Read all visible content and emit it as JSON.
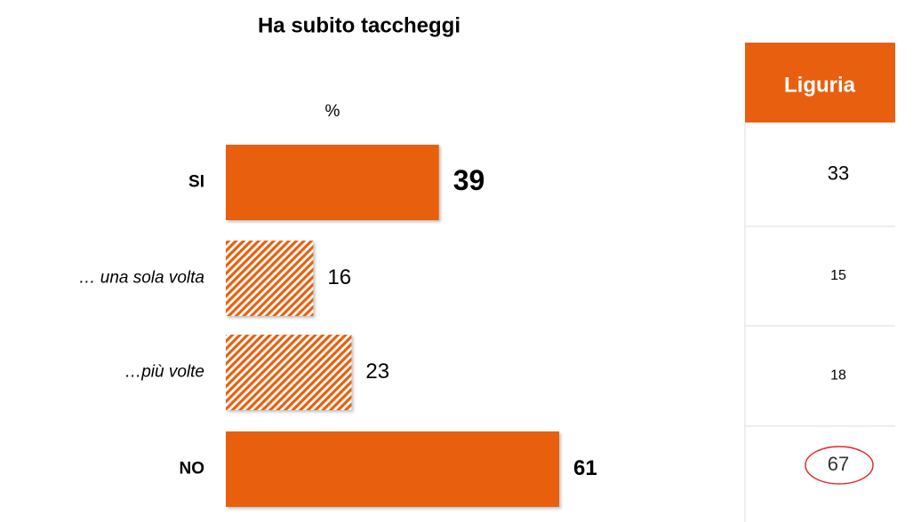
{
  "chart_data": {
    "type": "bar",
    "orientation": "horizontal",
    "title": "Ha subito taccheggi",
    "unit_label": "%",
    "categories": [
      "SI",
      "… una sola volta",
      "…più volte",
      "NO"
    ],
    "values": [
      39,
      16,
      23,
      61
    ],
    "patterns": [
      "solid",
      "hatch",
      "hatch",
      "solid"
    ],
    "color": "#e8600f"
  },
  "table": {
    "header": "Liguria",
    "rows": [
      33,
      15,
      18,
      67
    ],
    "circled_row": 3,
    "header_color": "#e8600f"
  }
}
